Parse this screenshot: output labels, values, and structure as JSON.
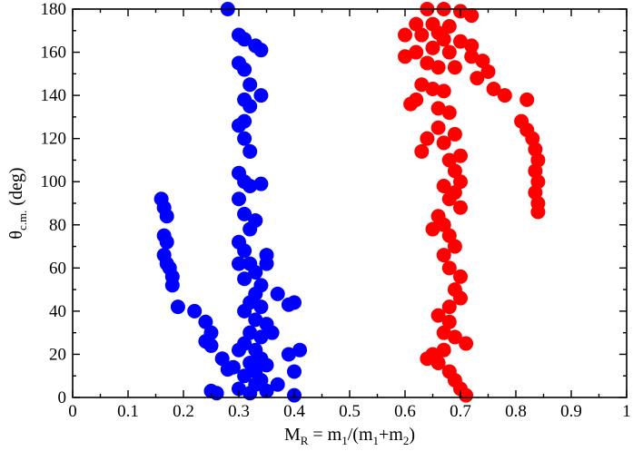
{
  "chart_data": {
    "type": "scatter",
    "xlabel": {
      "main": "M",
      "sub1": "R",
      "mid": " = m",
      "sub2": "1",
      "mid2": "/(m",
      "sub3": "1",
      "mid3": "+m",
      "sub4": "2",
      "end": ")"
    },
    "ylabel": {
      "main": "θ",
      "sub": "c.m.",
      "end": " (deg)"
    },
    "xlim": [
      0,
      1
    ],
    "ylim": [
      0,
      180
    ],
    "x_ticks": [
      "0",
      "0.1",
      "0.2",
      "0.3",
      "0.4",
      "0.5",
      "0.6",
      "0.7",
      "0.8",
      "0.9",
      "1"
    ],
    "y_ticks": [
      "0",
      "20",
      "40",
      "60",
      "80",
      "100",
      "120",
      "140",
      "160",
      "180"
    ],
    "grid": false,
    "series": [
      {
        "color": "#0000ff",
        "points": [
          [
            0.28,
            180
          ],
          [
            0.3,
            168
          ],
          [
            0.31,
            166
          ],
          [
            0.33,
            163
          ],
          [
            0.34,
            161
          ],
          [
            0.3,
            155
          ],
          [
            0.31,
            152
          ],
          [
            0.32,
            145
          ],
          [
            0.34,
            140
          ],
          [
            0.31,
            138
          ],
          [
            0.32,
            135
          ],
          [
            0.31,
            128
          ],
          [
            0.3,
            126
          ],
          [
            0.31,
            120
          ],
          [
            0.32,
            114
          ],
          [
            0.3,
            104
          ],
          [
            0.31,
            100
          ],
          [
            0.32,
            98
          ],
          [
            0.34,
            99
          ],
          [
            0.3,
            92
          ],
          [
            0.31,
            85
          ],
          [
            0.32,
            78
          ],
          [
            0.33,
            82
          ],
          [
            0.3,
            72
          ],
          [
            0.31,
            68
          ],
          [
            0.3,
            62
          ],
          [
            0.32,
            62
          ],
          [
            0.35,
            66
          ],
          [
            0.35,
            62
          ],
          [
            0.31,
            55
          ],
          [
            0.33,
            58
          ],
          [
            0.34,
            52
          ],
          [
            0.33,
            48
          ],
          [
            0.32,
            44
          ],
          [
            0.34,
            42
          ],
          [
            0.31,
            40
          ],
          [
            0.33,
            36
          ],
          [
            0.35,
            34
          ],
          [
            0.32,
            30
          ],
          [
            0.34,
            28
          ],
          [
            0.36,
            30
          ],
          [
            0.31,
            25
          ],
          [
            0.33,
            22
          ],
          [
            0.3,
            22
          ],
          [
            0.34,
            18
          ],
          [
            0.32,
            16
          ],
          [
            0.35,
            15
          ],
          [
            0.33,
            12
          ],
          [
            0.29,
            14
          ],
          [
            0.31,
            10
          ],
          [
            0.34,
            8
          ],
          [
            0.3,
            4
          ],
          [
            0.32,
            2
          ],
          [
            0.35,
            3
          ],
          [
            0.33,
            6
          ],
          [
            0.37,
            6
          ],
          [
            0.4,
            1
          ],
          [
            0.39,
            20
          ],
          [
            0.41,
            22
          ],
          [
            0.4,
            12
          ],
          [
            0.4,
            44
          ],
          [
            0.39,
            43
          ],
          [
            0.37,
            48
          ],
          [
            0.16,
            92
          ],
          [
            0.165,
            88
          ],
          [
            0.17,
            84
          ],
          [
            0.165,
            75
          ],
          [
            0.17,
            72
          ],
          [
            0.165,
            66
          ],
          [
            0.17,
            62
          ],
          [
            0.175,
            60
          ],
          [
            0.18,
            56
          ],
          [
            0.18,
            52
          ],
          [
            0.19,
            42
          ],
          [
            0.22,
            40
          ],
          [
            0.24,
            35
          ],
          [
            0.25,
            30
          ],
          [
            0.24,
            26
          ],
          [
            0.25,
            24
          ],
          [
            0.27,
            18
          ],
          [
            0.28,
            13
          ],
          [
            0.25,
            3
          ],
          [
            0.26,
            2
          ]
        ]
      },
      {
        "color": "#ff0000",
        "points": [
          [
            0.64,
            180
          ],
          [
            0.67,
            180
          ],
          [
            0.7,
            179
          ],
          [
            0.72,
            177
          ],
          [
            0.62,
            173
          ],
          [
            0.65,
            173
          ],
          [
            0.68,
            172
          ],
          [
            0.66,
            169
          ],
          [
            0.6,
            168
          ],
          [
            0.63,
            168
          ],
          [
            0.67,
            166
          ],
          [
            0.7,
            165
          ],
          [
            0.72,
            163
          ],
          [
            0.65,
            162
          ],
          [
            0.68,
            160
          ],
          [
            0.6,
            158
          ],
          [
            0.62,
            160
          ],
          [
            0.64,
            155
          ],
          [
            0.66,
            153
          ],
          [
            0.69,
            153
          ],
          [
            0.72,
            158
          ],
          [
            0.74,
            156
          ],
          [
            0.75,
            151
          ],
          [
            0.73,
            148
          ],
          [
            0.76,
            143
          ],
          [
            0.78,
            140
          ],
          [
            0.63,
            145
          ],
          [
            0.65,
            143
          ],
          [
            0.67,
            142
          ],
          [
            0.62,
            138
          ],
          [
            0.61,
            136
          ],
          [
            0.66,
            134
          ],
          [
            0.68,
            132
          ],
          [
            0.66,
            125
          ],
          [
            0.69,
            122
          ],
          [
            0.67,
            118
          ],
          [
            0.64,
            120
          ],
          [
            0.63,
            114
          ],
          [
            0.68,
            110
          ],
          [
            0.7,
            112
          ],
          [
            0.69,
            105
          ],
          [
            0.67,
            98
          ],
          [
            0.69,
            95
          ],
          [
            0.7,
            100
          ],
          [
            0.68,
            92
          ],
          [
            0.7,
            88
          ],
          [
            0.66,
            84
          ],
          [
            0.67,
            80
          ],
          [
            0.65,
            78
          ],
          [
            0.68,
            75
          ],
          [
            0.69,
            70
          ],
          [
            0.67,
            66
          ],
          [
            0.68,
            60
          ],
          [
            0.7,
            56
          ],
          [
            0.69,
            50
          ],
          [
            0.7,
            46
          ],
          [
            0.68,
            42
          ],
          [
            0.66,
            38
          ],
          [
            0.68,
            35
          ],
          [
            0.67,
            30
          ],
          [
            0.69,
            28
          ],
          [
            0.71,
            25
          ],
          [
            0.67,
            22
          ],
          [
            0.65,
            20
          ],
          [
            0.64,
            18
          ],
          [
            0.66,
            16
          ],
          [
            0.68,
            12
          ],
          [
            0.69,
            8
          ],
          [
            0.7,
            4
          ],
          [
            0.71,
            1
          ],
          [
            0.82,
            138
          ],
          [
            0.81,
            128
          ],
          [
            0.82,
            124
          ],
          [
            0.83,
            120
          ],
          [
            0.835,
            115
          ],
          [
            0.84,
            110
          ],
          [
            0.835,
            105
          ],
          [
            0.84,
            100
          ],
          [
            0.835,
            95
          ],
          [
            0.84,
            90
          ],
          [
            0.84,
            86
          ]
        ]
      }
    ]
  }
}
